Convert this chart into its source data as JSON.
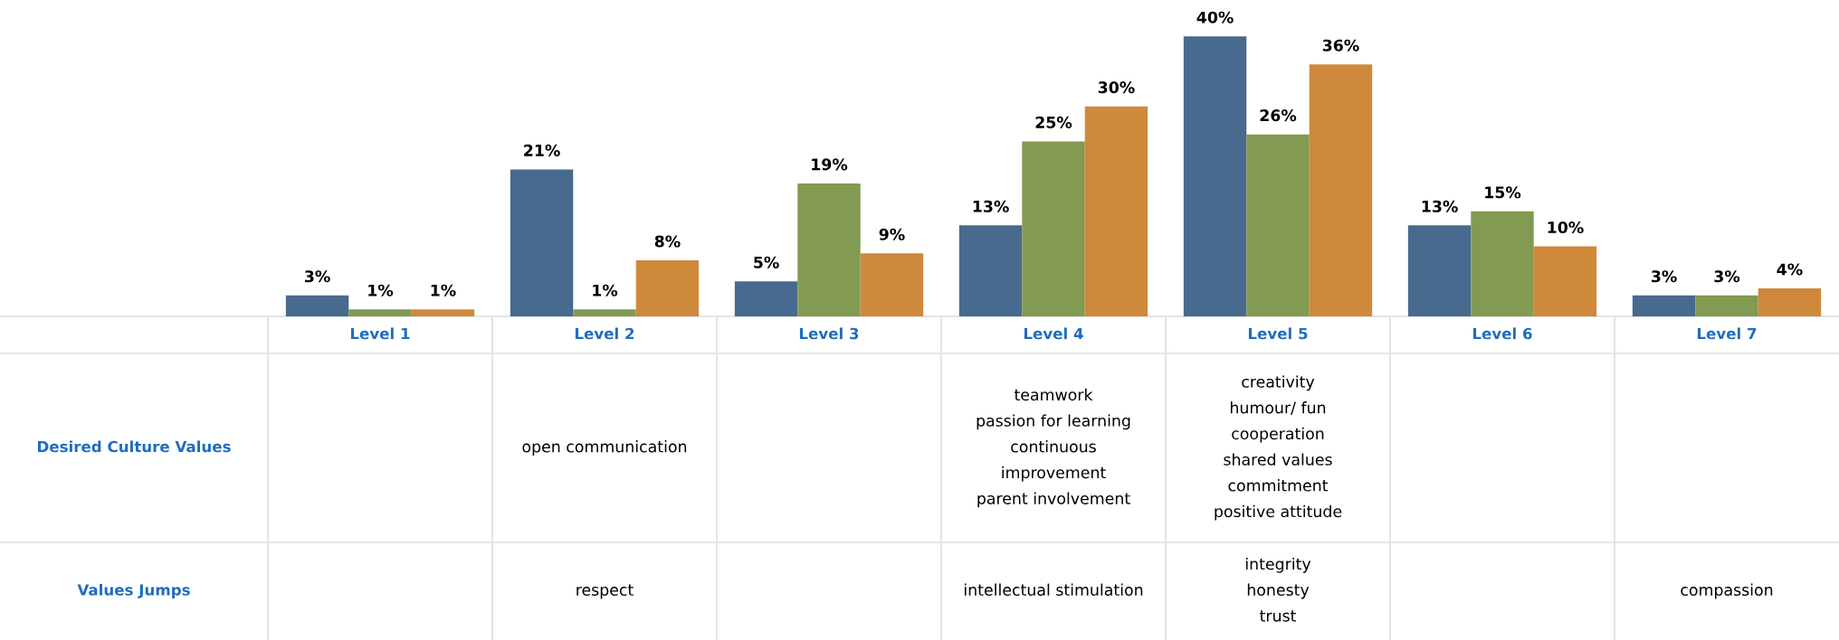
{
  "chart_data": {
    "type": "bar",
    "categories": [
      "Level 1",
      "Level 2",
      "Level 3",
      "Level 4",
      "Level 5",
      "Level 6",
      "Level 7"
    ],
    "series": [
      {
        "color": "#476a8e",
        "values": [
          3,
          21,
          5,
          13,
          40,
          13,
          3
        ],
        "value_labels": [
          "3%",
          "21%",
          "5%",
          "13%",
          "40%",
          "13%",
          "3%"
        ]
      },
      {
        "color": "#829a52",
        "values": [
          1,
          1,
          19,
          25,
          26,
          15,
          3
        ],
        "value_labels": [
          "1%",
          "1%",
          "19%",
          "25%",
          "26%",
          "15%",
          "3%"
        ]
      },
      {
        "color": "#cf893b",
        "values": [
          1,
          8,
          9,
          30,
          36,
          10,
          4
        ],
        "value_labels": [
          "1%",
          "8%",
          "9%",
          "30%",
          "36%",
          "10%",
          "4%"
        ]
      }
    ],
    "annotations": [
      "Desired Culture Values",
      "open communication",
      "teamwork\npassion for learning\ncontinuous\nimprovement\nparent involvement",
      "creativity\nhumour/ fun\ncooperation\nshared values\ncommitment\npositive attitude",
      "Values Jumps",
      "respect",
      "intellectual stimulation",
      "integrity\nhonesty\ntrust",
      "compassion"
    ]
  }
}
